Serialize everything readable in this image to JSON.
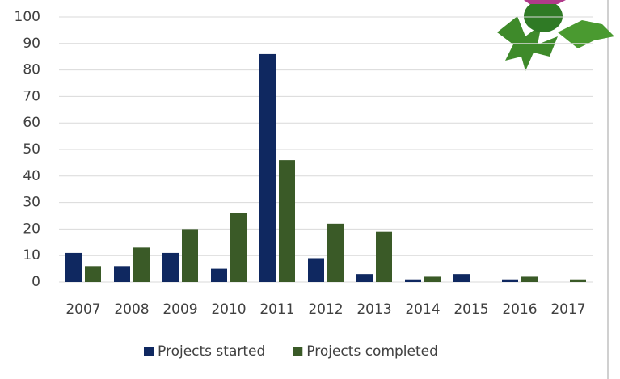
{
  "chart_data": {
    "type": "bar",
    "categories": [
      "2007",
      "2008",
      "2009",
      "2010",
      "2011",
      "2012",
      "2013",
      "2014",
      "2015",
      "2016",
      "2017"
    ],
    "series": [
      {
        "name": "Projects started",
        "color": "#0f2860",
        "values": [
          11,
          6,
          11,
          5,
          86,
          9,
          3,
          1,
          3,
          1,
          0
        ]
      },
      {
        "name": "Projects completed",
        "color": "#3a5a27",
        "values": [
          6,
          13,
          20,
          26,
          46,
          22,
          19,
          2,
          0,
          2,
          1
        ]
      }
    ],
    "ylim": [
      0,
      100
    ],
    "yticks": [
      0,
      10,
      20,
      30,
      40,
      50,
      60,
      70,
      80,
      90,
      100
    ],
    "grid": true,
    "legend": "bottom"
  }
}
